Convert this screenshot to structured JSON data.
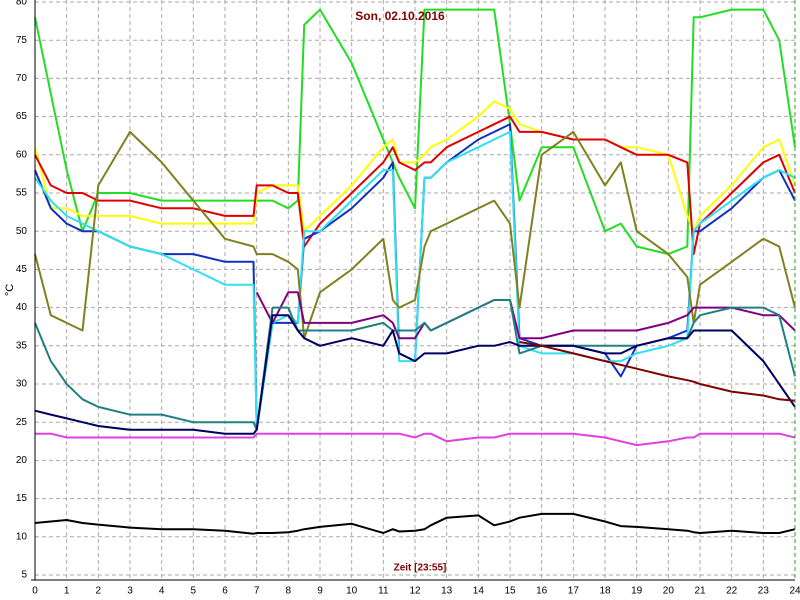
{
  "chart_data": {
    "type": "line",
    "title": "Son, 02.10.2016",
    "xlabel": "Zeit [23:55]",
    "ylabel": "°C",
    "x": [
      0,
      0.5,
      1,
      1.5,
      2,
      3,
      4,
      5,
      6,
      6.9,
      7,
      7.5,
      8,
      8.3,
      8.5,
      9,
      10,
      11,
      11.3,
      11.5,
      12,
      12.3,
      12.5,
      13,
      14,
      14.5,
      15,
      15.3,
      16,
      17,
      18,
      18.5,
      19,
      20,
      20.6,
      20.8,
      21,
      22,
      23,
      23.5,
      24
    ],
    "series": [
      {
        "color": "#22dd22",
        "values": [
          78,
          68,
          58,
          50,
          55,
          55,
          54,
          54,
          54,
          54,
          54,
          54,
          53,
          54,
          77,
          79,
          72,
          62,
          59,
          57,
          53,
          79,
          79,
          79,
          79,
          79,
          64,
          54,
          61,
          61,
          50,
          51,
          48,
          47,
          48,
          78,
          78,
          79,
          79,
          75,
          61
        ]
      },
      {
        "color": "#ffff00",
        "values": [
          61,
          53,
          53,
          52,
          52,
          52,
          51,
          51,
          51,
          51,
          55,
          56,
          56,
          56,
          50,
          52,
          56,
          61,
          62,
          59,
          59,
          60,
          61,
          62,
          65,
          67,
          66,
          64,
          63,
          62,
          62,
          61,
          61,
          60,
          52,
          50,
          52,
          56,
          61,
          62,
          56
        ]
      },
      {
        "color": "#e00000",
        "values": [
          60,
          56,
          55,
          55,
          54,
          54,
          53,
          53,
          52,
          52,
          56,
          56,
          55,
          55,
          48,
          51,
          55,
          59,
          61,
          59,
          58,
          59,
          59,
          61,
          63,
          64,
          65,
          63,
          63,
          62,
          62,
          61,
          60,
          60,
          59,
          47,
          51,
          55,
          59,
          60,
          55
        ]
      },
      {
        "color": "#1030c0",
        "values": [
          58,
          53,
          51,
          50,
          50,
          48,
          47,
          47,
          46,
          46,
          24,
          38,
          38,
          38,
          49,
          50,
          53,
          57,
          59,
          34,
          33,
          57,
          57,
          59,
          62,
          63,
          64,
          36,
          35,
          35,
          34,
          31,
          35,
          36,
          37,
          50,
          50,
          53,
          57,
          58,
          54
        ]
      },
      {
        "color": "#30e0f0",
        "values": [
          57,
          54,
          52,
          51,
          50,
          48,
          47,
          45,
          43,
          43,
          24,
          38,
          39,
          38,
          50,
          50,
          54,
          58,
          58,
          33,
          33,
          57,
          57,
          59,
          61,
          62,
          63,
          35,
          34,
          34,
          33,
          33,
          34,
          35,
          36,
          50,
          51,
          54,
          57,
          58,
          57
        ]
      },
      {
        "color": "#808020",
        "values": [
          47,
          39,
          38,
          37,
          56,
          63,
          59,
          54,
          49,
          48,
          47,
          47,
          46,
          45,
          36,
          42,
          45,
          49,
          41,
          40,
          41,
          48,
          50,
          51,
          53,
          54,
          51,
          40,
          60,
          63,
          56,
          59,
          50,
          47,
          44,
          38,
          43,
          46,
          49,
          48,
          40
        ]
      },
      {
        "color": "#800080",
        "values": [
          null,
          null,
          null,
          null,
          null,
          null,
          null,
          null,
          null,
          null,
          42,
          38,
          42,
          42,
          38,
          38,
          38,
          39,
          38,
          36,
          36,
          38,
          37,
          38,
          40,
          41,
          41,
          36,
          36,
          37,
          37,
          37,
          37,
          38,
          39,
          40,
          40,
          40,
          39,
          39,
          37
        ]
      },
      {
        "color": "#208080",
        "values": [
          38,
          33,
          30,
          28,
          27,
          26,
          26,
          25,
          25,
          25,
          24,
          40,
          40,
          37,
          37,
          37,
          37,
          38,
          37,
          37,
          37,
          38,
          37,
          38,
          40,
          41,
          41,
          34,
          35,
          35,
          35,
          35,
          35,
          36,
          36,
          38,
          39,
          40,
          40,
          39,
          31
        ]
      },
      {
        "color": "#000060",
        "values": [
          26.5,
          26,
          25.5,
          25,
          24.5,
          24,
          24,
          24,
          23.5,
          23.5,
          24,
          39,
          39,
          37,
          36,
          35,
          36,
          35,
          37,
          34,
          33,
          34,
          34,
          34,
          35,
          35,
          35.5,
          35,
          35,
          35,
          34,
          34,
          35,
          36,
          36,
          37,
          37,
          37,
          33,
          30,
          27
        ]
      },
      {
        "color": "#800000",
        "values": [
          null,
          null,
          null,
          null,
          null,
          null,
          null,
          null,
          null,
          null,
          null,
          null,
          null,
          null,
          null,
          null,
          null,
          null,
          null,
          null,
          null,
          null,
          null,
          null,
          null,
          null,
          null,
          35.5,
          35,
          34,
          33,
          32.5,
          32,
          31,
          30.5,
          30.3,
          30,
          29,
          28.5,
          28,
          27.8
        ]
      },
      {
        "color": "#e040e0",
        "values": [
          23.5,
          23.5,
          23,
          23,
          23,
          23,
          23,
          23,
          23,
          23,
          23.5,
          23.5,
          23.5,
          23.5,
          23.5,
          23.5,
          23.5,
          23.5,
          23.5,
          23.5,
          23,
          23.5,
          23.5,
          22.5,
          23,
          23,
          23.5,
          23.5,
          23.5,
          23.5,
          23,
          22.5,
          22,
          22.5,
          23,
          23,
          23.5,
          23.5,
          23.5,
          23.5,
          23
        ]
      },
      {
        "color": "#000000",
        "values": [
          11.8,
          12,
          12.2,
          11.8,
          11.6,
          11.2,
          11,
          11,
          10.8,
          10.4,
          10.5,
          10.5,
          10.6,
          10.8,
          11,
          11.3,
          11.7,
          10.5,
          11,
          10.7,
          10.8,
          11,
          11.5,
          12.5,
          12.8,
          11.5,
          12,
          12.5,
          13,
          13,
          12,
          11.4,
          11.3,
          11,
          10.8,
          10.6,
          10.5,
          10.8,
          10.5,
          10.5,
          11
        ]
      }
    ],
    "xlim": [
      0,
      24
    ],
    "ylim": [
      5,
      80
    ],
    "xticks": [
      0,
      1,
      2,
      3,
      4,
      5,
      6,
      7,
      8,
      9,
      10,
      11,
      12,
      13,
      14,
      15,
      16,
      17,
      18,
      19,
      20,
      21,
      22,
      23,
      24
    ],
    "yticks": [
      5,
      10,
      15,
      20,
      25,
      30,
      35,
      40,
      45,
      50,
      55,
      60,
      65,
      70,
      75,
      80
    ],
    "grid": true
  }
}
